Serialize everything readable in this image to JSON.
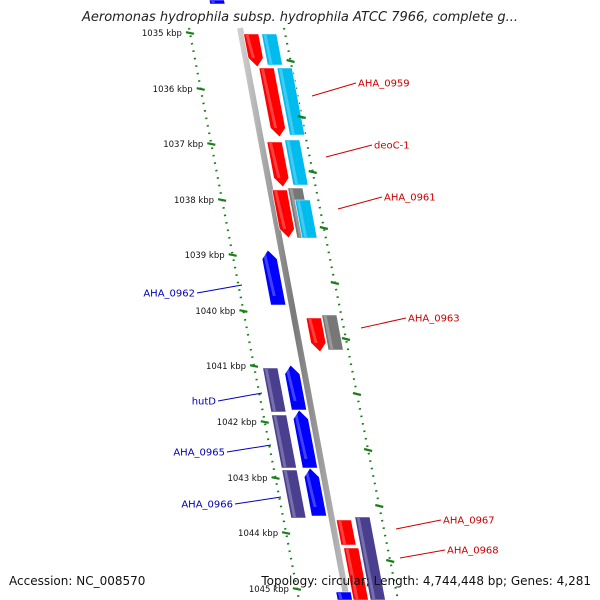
{
  "title": "Aeromonas hydrophila subsp. hydrophila ATCC 7966, complete g...",
  "accession": "Accession: NC_008570",
  "summary": "Topology: circular; Length: 4,744,448 bp; Genes: 4,281",
  "colors": {
    "forward_cds": "#ff0000",
    "reverse_cds": "#0000ff",
    "forward_gene": "#00bbee",
    "reverse_gene": "#4a3f8f",
    "other_feature": "#777777",
    "backbone": "#888888",
    "tick": "#1a7f1a",
    "label_forward": "#cc0000",
    "label_reverse": "#0000bb"
  },
  "kbp_marks": [
    "1035 kbp",
    "1036 kbp",
    "1037 kbp",
    "1038 kbp",
    "1039 kbp",
    "1040 kbp",
    "1041 kbp",
    "1042 kbp",
    "1043 kbp",
    "1044 kbp",
    "1045 kbp"
  ],
  "labels_right": [
    "AHA_0959",
    "deoC-1",
    "AHA_0961",
    "AHA_0963",
    "AHA_0967",
    "AHA_0968"
  ],
  "labels_left": [
    "AHA_0962",
    "hutD",
    "AHA_0965",
    "AHA_0966"
  ]
}
